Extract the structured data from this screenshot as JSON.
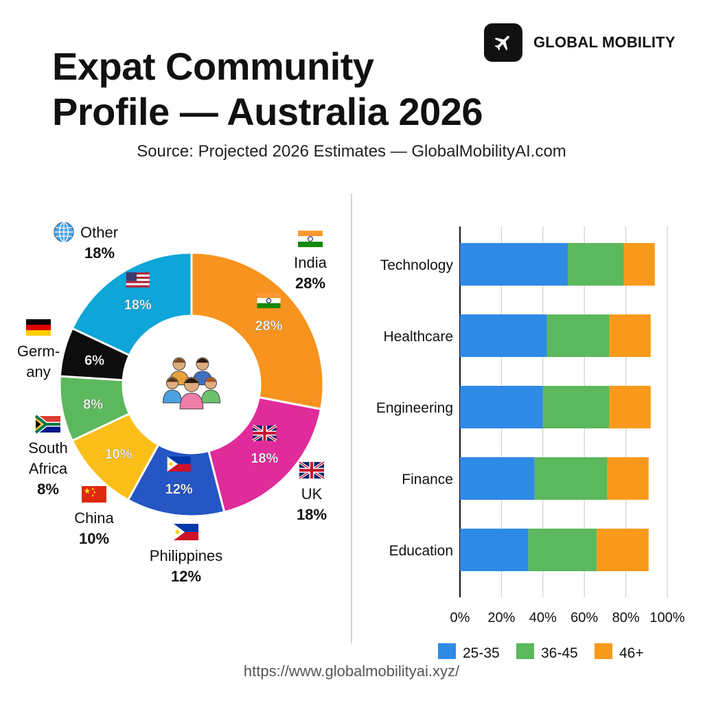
{
  "header": {
    "title_line1": "Expat Community",
    "title_line2": "Profile — Australia 2026",
    "subtitle": "Source: Projected 2026 Estimates — GlobalMobilityAI.com"
  },
  "brand": {
    "name": "GLOBAL MOBILITY",
    "logo_icon": "airplane-icon"
  },
  "footer": {
    "url": "https://www.globalmobilityai.xyz/"
  },
  "center_icon": "people-group-icon",
  "chart_data": [
    {
      "type": "pie",
      "variant": "donut",
      "slices": [
        {
          "name": "India",
          "value": 28,
          "label": "28%",
          "color": "#f7931e",
          "flag": "india-flag-icon"
        },
        {
          "name": "UK",
          "value": 18,
          "label": "18%",
          "color": "#e02b9a",
          "flag": "uk-flag-icon"
        },
        {
          "name": "Philippines",
          "value": 12,
          "label": "12%",
          "color": "#2556c4",
          "flag": "philippines-flag-icon"
        },
        {
          "name": "China",
          "value": 10,
          "label": "10%",
          "color": "#fbbf1a",
          "flag": "china-flag-icon"
        },
        {
          "name": "South Africa",
          "value": 8,
          "label": "8%",
          "color": "#5cb85c",
          "flag": "south-africa-flag-icon"
        },
        {
          "name": "Germany",
          "value": 6,
          "label": "6%",
          "color": "#0d0d0d",
          "flag": "germany-flag-icon"
        },
        {
          "name": "Other",
          "value": 18,
          "label": "18%",
          "color": "#0ea5d8",
          "flag": "usa-flag-icon"
        }
      ],
      "outer_labels": [
        {
          "lines": [
            "India"
          ],
          "value": "28%",
          "icon": "india-flag-icon"
        },
        {
          "lines": [
            "UK"
          ],
          "value": "18%",
          "icon": "uk-flag-icon"
        },
        {
          "lines": [
            "Philippines"
          ],
          "value": "12%",
          "icon": "philippines-flag-icon"
        },
        {
          "lines": [
            "China"
          ],
          "value": "10%",
          "icon": "china-flag-icon"
        },
        {
          "lines": [
            "South",
            "Africa"
          ],
          "value": "8%",
          "icon": "south-africa-flag-icon"
        },
        {
          "lines": [
            "Germ-",
            "any"
          ],
          "value": "",
          "icon": "germany-flag-icon"
        },
        {
          "lines": [
            "Other"
          ],
          "value": "18%",
          "icon": "globe-icon"
        }
      ]
    },
    {
      "type": "bar",
      "orientation": "horizontal",
      "stacked": true,
      "categories": [
        "Technology",
        "Healthcare",
        "Engineering",
        "Finance",
        "Education"
      ],
      "series": [
        {
          "name": "25-35",
          "color": "#2f8ae6",
          "values": [
            52,
            42,
            40,
            36,
            33
          ]
        },
        {
          "name": "36-45",
          "color": "#5cb85c",
          "values": [
            27,
            30,
            32,
            35,
            33
          ]
        },
        {
          "name": "46+",
          "color": "#f99a1c",
          "values": [
            15,
            20,
            20,
            20,
            25
          ]
        }
      ],
      "x_ticks": [
        "0%",
        "20%",
        "40%",
        "60%",
        "80%",
        "100%"
      ],
      "xlim": [
        0,
        100
      ],
      "grid": true,
      "legend_position": "bottom"
    }
  ]
}
